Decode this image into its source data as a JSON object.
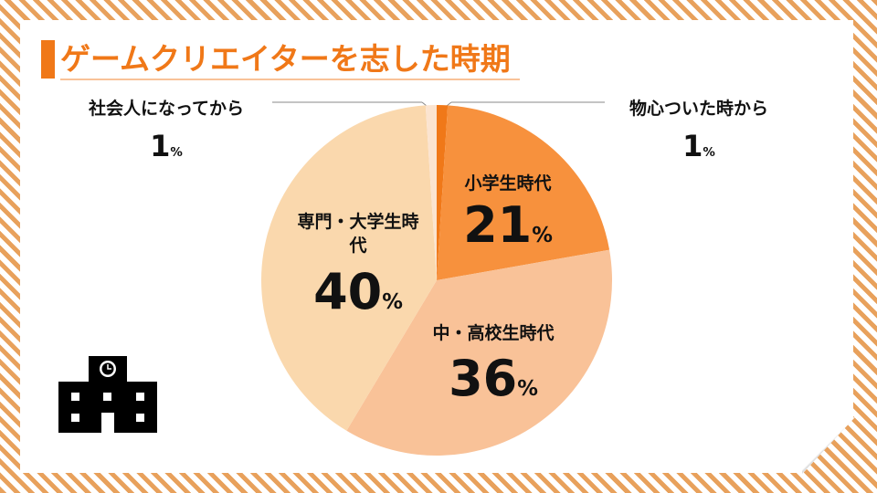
{
  "chart_data": {
    "type": "pie",
    "title": "ゲームクリエイターを志した時期",
    "categories": [
      "物心ついた時から",
      "小学生時代",
      "中・高校生時代",
      "専門・大学生時代",
      "社会人になってから"
    ],
    "values": [
      1,
      21,
      36,
      40,
      1
    ],
    "value_labels": [
      "1%",
      "21%",
      "36%",
      "40%",
      "1%"
    ],
    "colors": [
      "#f07818",
      "#f7913d",
      "#f9c298",
      "#fad8ad",
      "#fbe4d0"
    ]
  }
}
